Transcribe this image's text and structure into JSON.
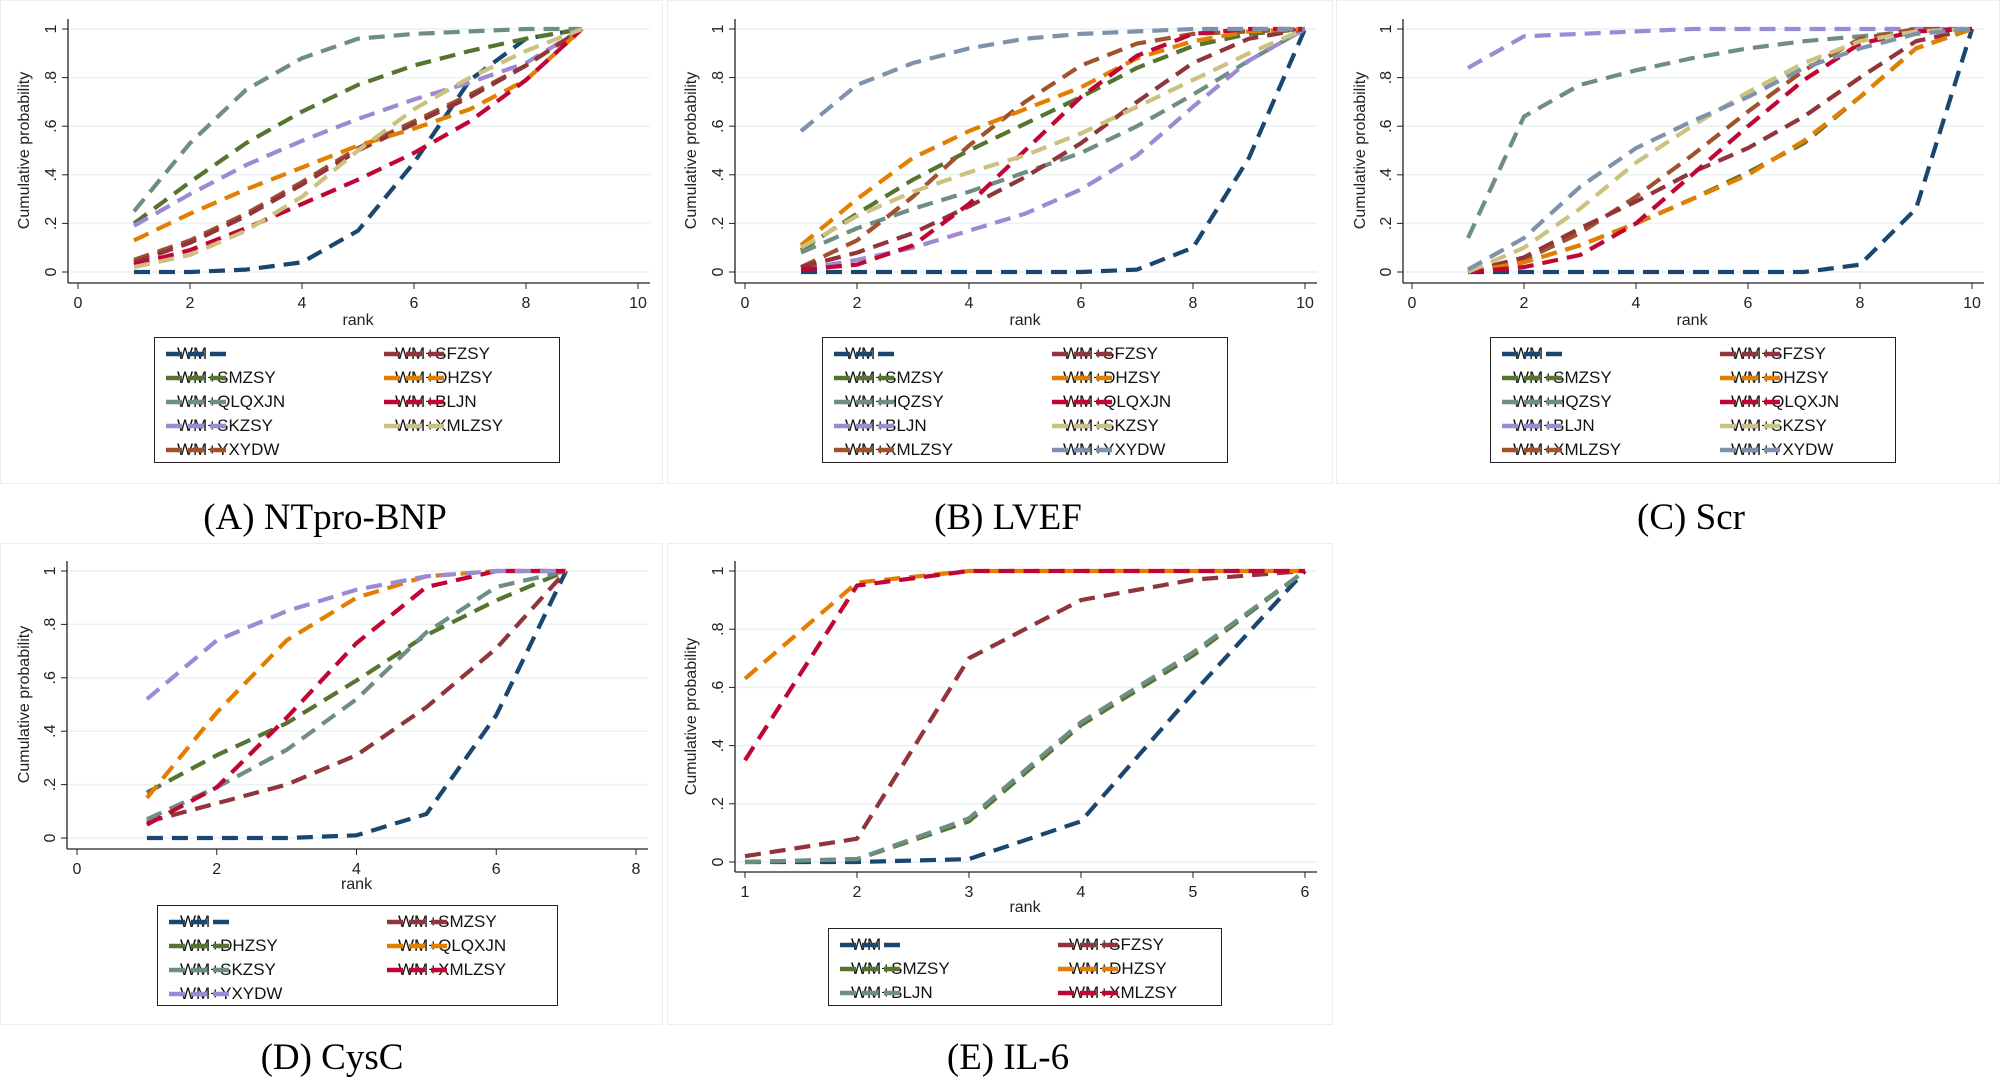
{
  "figure": {
    "captions": [
      "(A) NTpro-BNP",
      "(B) LVEF",
      "(C) Scr",
      "(D) CysC",
      "(E) IL-6"
    ]
  },
  "colors": {
    "navy": "#1a476f",
    "green": "#55752f",
    "graygreen": "#6e8e84",
    "lavender": "#9c8ad4",
    "brown": "#a0522d",
    "maroon": "#90353b",
    "orange": "#e37e00",
    "crimson": "#c10534",
    "khaki": "#cac27e",
    "slate": "#7f92ab"
  },
  "chart_data": [
    {
      "type": "line",
      "panel": "A",
      "title": "(A) NTpro-BNP",
      "xlabel": "rank",
      "ylabel": "Cumulative probability",
      "xlim": [
        0,
        10
      ],
      "ylim": [
        0,
        1
      ],
      "xticks": [
        "0",
        "2",
        "4",
        "6",
        "8",
        "10"
      ],
      "xtick_values": [
        0,
        2,
        4,
        6,
        8,
        10
      ],
      "yticks": [
        "0",
        ".2",
        ".4",
        ".6",
        ".8",
        "1"
      ],
      "grid": true,
      "legend_position": "bottom",
      "x": [
        1,
        2,
        3,
        4,
        5,
        6,
        7,
        8,
        9
      ],
      "series": [
        {
          "name": "WM",
          "color": "navy",
          "values": [
            0,
            0,
            0.01,
            0.04,
            0.17,
            0.45,
            0.79,
            0.96,
            1
          ]
        },
        {
          "name": "WM+SMZSY",
          "color": "green",
          "values": [
            0.2,
            0.37,
            0.53,
            0.66,
            0.77,
            0.85,
            0.91,
            0.96,
            1
          ]
        },
        {
          "name": "WM+QLQXJN",
          "color": "graygreen",
          "values": [
            0.25,
            0.53,
            0.75,
            0.88,
            0.96,
            0.98,
            0.99,
            1.0,
            1
          ]
        },
        {
          "name": "WM+SKZSY",
          "color": "lavender",
          "values": [
            0.19,
            0.32,
            0.44,
            0.54,
            0.63,
            0.71,
            0.78,
            0.86,
            1
          ]
        },
        {
          "name": "WM+YXYDW",
          "color": "brown",
          "values": [
            0.05,
            0.13,
            0.24,
            0.37,
            0.51,
            0.62,
            0.73,
            0.85,
            1
          ]
        },
        {
          "name": "WM+SFZSY",
          "color": "maroon",
          "values": [
            0.04,
            0.12,
            0.23,
            0.36,
            0.5,
            0.61,
            0.72,
            0.85,
            1
          ]
        },
        {
          "name": "WM+DHZSY",
          "color": "orange",
          "values": [
            0.13,
            0.24,
            0.34,
            0.43,
            0.52,
            0.59,
            0.67,
            0.79,
            1
          ]
        },
        {
          "name": "WM+BLJN",
          "color": "crimson",
          "values": [
            0.03,
            0.09,
            0.18,
            0.28,
            0.38,
            0.49,
            0.62,
            0.79,
            1
          ]
        },
        {
          "name": "WM+XMLZSY",
          "color": "khaki",
          "values": [
            0.02,
            0.07,
            0.17,
            0.31,
            0.5,
            0.67,
            0.8,
            0.91,
            1
          ]
        }
      ],
      "legend_order": [
        "WM",
        "WM+SFZSY",
        "WM+SMZSY",
        "WM+DHZSY",
        "WM+QLQXJN",
        "WM+BLJN",
        "WM+SKZSY",
        "WM+XMLZSY",
        "WM+YXYDW"
      ]
    },
    {
      "type": "line",
      "panel": "B",
      "title": "(B) LVEF",
      "xlabel": "rank",
      "ylabel": "Cumulative probability",
      "xlim": [
        0,
        10
      ],
      "ylim": [
        0,
        1
      ],
      "xticks": [
        "0",
        "2",
        "4",
        "6",
        "8",
        "10"
      ],
      "xtick_values": [
        0,
        2,
        4,
        6,
        8,
        10
      ],
      "yticks": [
        "0",
        ".2",
        ".4",
        ".6",
        ".8",
        "1"
      ],
      "grid": true,
      "legend_position": "bottom",
      "x": [
        1,
        2,
        3,
        4,
        5,
        6,
        7,
        8,
        9,
        10
      ],
      "series": [
        {
          "name": "WM",
          "color": "navy",
          "values": [
            0,
            0,
            0,
            0,
            0,
            0,
            0.01,
            0.1,
            0.47,
            1
          ]
        },
        {
          "name": "WM+SMZSY",
          "color": "green",
          "values": [
            0.09,
            0.24,
            0.38,
            0.5,
            0.61,
            0.72,
            0.84,
            0.93,
            0.98,
            1
          ]
        },
        {
          "name": "WM+HQZSY",
          "color": "graygreen",
          "values": [
            0.08,
            0.18,
            0.26,
            0.33,
            0.41,
            0.49,
            0.6,
            0.73,
            0.87,
            1
          ]
        },
        {
          "name": "WM+BLJN",
          "color": "lavender",
          "values": [
            0.01,
            0.05,
            0.1,
            0.17,
            0.24,
            0.34,
            0.48,
            0.68,
            0.87,
            1
          ]
        },
        {
          "name": "WM+XMLZSY",
          "color": "brown",
          "values": [
            0.02,
            0.13,
            0.31,
            0.52,
            0.7,
            0.85,
            0.94,
            0.98,
            0.99,
            1
          ]
        },
        {
          "name": "WM+SFZSY",
          "color": "maroon",
          "values": [
            0.02,
            0.08,
            0.16,
            0.27,
            0.39,
            0.53,
            0.7,
            0.86,
            0.96,
            1
          ]
        },
        {
          "name": "WM+DHZSY",
          "color": "orange",
          "values": [
            0.11,
            0.3,
            0.47,
            0.58,
            0.67,
            0.76,
            0.88,
            0.95,
            0.99,
            1
          ]
        },
        {
          "name": "WM+QLQXJN",
          "color": "crimson",
          "values": [
            0.01,
            0.03,
            0.11,
            0.28,
            0.5,
            0.72,
            0.89,
            0.98,
            1.0,
            1
          ]
        },
        {
          "name": "WM+SKZSY",
          "color": "khaki",
          "values": [
            0.1,
            0.23,
            0.33,
            0.41,
            0.48,
            0.57,
            0.68,
            0.79,
            0.9,
            1
          ]
        },
        {
          "name": "WM+YXYDW",
          "color": "slate",
          "values": [
            0.58,
            0.77,
            0.86,
            0.92,
            0.96,
            0.98,
            0.99,
            1.0,
            1.0,
            1
          ]
        }
      ],
      "legend_order": [
        "WM",
        "WM+SFZSY",
        "WM+SMZSY",
        "WM+DHZSY",
        "WM+HQZSY",
        "WM+QLQXJN",
        "WM+BLJN",
        "WM+SKZSY",
        "WM+XMLZSY",
        "WM+YXYDW"
      ]
    },
    {
      "type": "line",
      "panel": "C",
      "title": "(C) Scr",
      "xlabel": "rank",
      "ylabel": "Cumulative probability",
      "xlim": [
        0,
        10
      ],
      "ylim": [
        0,
        1
      ],
      "xticks": [
        "0",
        "2",
        "4",
        "6",
        "8",
        "10"
      ],
      "xtick_values": [
        0,
        2,
        4,
        6,
        8,
        10
      ],
      "yticks": [
        "0",
        ".2",
        ".4",
        ".6",
        ".8",
        "1"
      ],
      "grid": true,
      "legend_position": "bottom",
      "x": [
        1,
        2,
        3,
        4,
        5,
        6,
        7,
        8,
        9,
        10
      ],
      "series": [
        {
          "name": "WM",
          "color": "navy",
          "values": [
            0,
            0,
            0,
            0,
            0,
            0,
            0,
            0.03,
            0.26,
            1
          ]
        },
        {
          "name": "WM+SMZSY",
          "color": "green",
          "values": [
            0,
            0.04,
            0.11,
            0.2,
            0.3,
            0.41,
            0.53,
            0.72,
            0.92,
            1
          ]
        },
        {
          "name": "WM+HQZSY",
          "color": "graygreen",
          "values": [
            0.14,
            0.64,
            0.77,
            0.83,
            0.88,
            0.92,
            0.95,
            0.97,
            0.99,
            1
          ]
        },
        {
          "name": "WM+BLJN",
          "color": "lavender",
          "values": [
            0.84,
            0.97,
            0.98,
            0.99,
            1,
            1,
            1,
            1,
            1,
            1
          ]
        },
        {
          "name": "WM+XMLZSY",
          "color": "brown",
          "values": [
            0,
            0.05,
            0.16,
            0.31,
            0.48,
            0.66,
            0.83,
            0.96,
            1,
            1
          ]
        },
        {
          "name": "WM+SFZSY",
          "color": "maroon",
          "values": [
            0,
            0.06,
            0.18,
            0.29,
            0.41,
            0.51,
            0.64,
            0.8,
            0.95,
            1
          ]
        },
        {
          "name": "WM+DHZSY",
          "color": "orange",
          "values": [
            0,
            0.04,
            0.11,
            0.2,
            0.3,
            0.4,
            0.54,
            0.72,
            0.92,
            1
          ]
        },
        {
          "name": "WM+QLQXJN",
          "color": "crimson",
          "values": [
            0,
            0.02,
            0.07,
            0.2,
            0.4,
            0.6,
            0.79,
            0.94,
            0.99,
            1
          ]
        },
        {
          "name": "WM+SKZSY",
          "color": "khaki",
          "values": [
            0,
            0.1,
            0.26,
            0.45,
            0.6,
            0.74,
            0.86,
            0.95,
            0.99,
            1
          ]
        },
        {
          "name": "WM+YXYDW",
          "color": "slate",
          "values": [
            0.01,
            0.14,
            0.35,
            0.51,
            0.62,
            0.72,
            0.84,
            0.92,
            0.98,
            1
          ]
        }
      ],
      "legend_order": [
        "WM",
        "WM+SFZSY",
        "WM+SMZSY",
        "WM+DHZSY",
        "WM+HQZSY",
        "WM+QLQXJN",
        "WM+BLJN",
        "WM+SKZSY",
        "WM+XMLZSY",
        "WM+YXYDW"
      ]
    },
    {
      "type": "line",
      "panel": "D",
      "title": "(D) CysC",
      "xlabel": "rank",
      "ylabel": "Cumulative probability",
      "xlim": [
        0,
        8
      ],
      "ylim": [
        0,
        1
      ],
      "xticks": [
        "0",
        "2",
        "4",
        "6",
        "8"
      ],
      "xtick_values": [
        0,
        2,
        4,
        6,
        8
      ],
      "yticks": [
        "0",
        ".2",
        ".4",
        ".6",
        ".8",
        "1"
      ],
      "grid": true,
      "legend_position": "bottom",
      "x": [
        1,
        2,
        3,
        4,
        5,
        6,
        7
      ],
      "series": [
        {
          "name": "WM",
          "color": "navy",
          "values": [
            0,
            0,
            0,
            0.01,
            0.09,
            0.46,
            1
          ]
        },
        {
          "name": "WM+SMZSY",
          "color": "maroon",
          "values": [
            0.06,
            0.13,
            0.2,
            0.31,
            0.49,
            0.71,
            1
          ]
        },
        {
          "name": "WM+DHZSY",
          "color": "green",
          "values": [
            0.17,
            0.31,
            0.43,
            0.59,
            0.76,
            0.89,
            1
          ]
        },
        {
          "name": "WM+QLQXJN",
          "color": "orange",
          "values": [
            0.15,
            0.47,
            0.74,
            0.9,
            0.98,
            1,
            1
          ]
        },
        {
          "name": "WM+SKZSY",
          "color": "graygreen",
          "values": [
            0.07,
            0.19,
            0.33,
            0.52,
            0.77,
            0.94,
            1
          ]
        },
        {
          "name": "WM+XMLZSY",
          "color": "crimson",
          "values": [
            0.05,
            0.19,
            0.45,
            0.73,
            0.94,
            1,
            1
          ]
        },
        {
          "name": "WM+YXYDW",
          "color": "lavender",
          "values": [
            0.52,
            0.74,
            0.85,
            0.93,
            0.98,
            1,
            1
          ]
        }
      ],
      "legend_order": [
        "WM",
        "WM+SMZSY",
        "WM+DHZSY",
        "WM+QLQXJN",
        "WM+SKZSY",
        "WM+XMLZSY",
        "WM+YXYDW"
      ]
    },
    {
      "type": "line",
      "panel": "E",
      "title": "(E) IL-6",
      "xlabel": "rank",
      "ylabel": "Cumulative probability",
      "xlim": [
        1,
        6
      ],
      "ylim": [
        0,
        1
      ],
      "xticks": [
        "1",
        "2",
        "3",
        "4",
        "5",
        "6"
      ],
      "xtick_values": [
        1,
        2,
        3,
        4,
        5,
        6
      ],
      "yticks": [
        "0",
        ".2",
        ".4",
        ".6",
        ".8",
        "1"
      ],
      "grid": true,
      "legend_position": "bottom",
      "x": [
        1,
        2,
        3,
        4,
        5,
        6
      ],
      "series": [
        {
          "name": "WM",
          "color": "navy",
          "values": [
            0,
            0,
            0.01,
            0.14,
            0.58,
            1
          ]
        },
        {
          "name": "WM+SFZSY",
          "color": "maroon",
          "values": [
            0.02,
            0.08,
            0.7,
            0.9,
            0.97,
            1
          ]
        },
        {
          "name": "WM+SMZSY",
          "color": "green",
          "values": [
            0,
            0.01,
            0.14,
            0.47,
            0.71,
            1
          ]
        },
        {
          "name": "WM+DHZSY",
          "color": "orange",
          "values": [
            0.63,
            0.96,
            1,
            1,
            1,
            1
          ]
        },
        {
          "name": "WM+BLJN",
          "color": "graygreen",
          "values": [
            0,
            0.01,
            0.15,
            0.48,
            0.72,
            1
          ]
        },
        {
          "name": "WM+XMLZSY",
          "color": "crimson",
          "values": [
            0.35,
            0.95,
            1,
            1,
            1,
            1
          ]
        }
      ],
      "legend_order": [
        "WM",
        "WM+SFZSY",
        "WM+SMZSY",
        "WM+DHZSY",
        "WM+BLJN",
        "WM+XMLZSY"
      ]
    }
  ]
}
